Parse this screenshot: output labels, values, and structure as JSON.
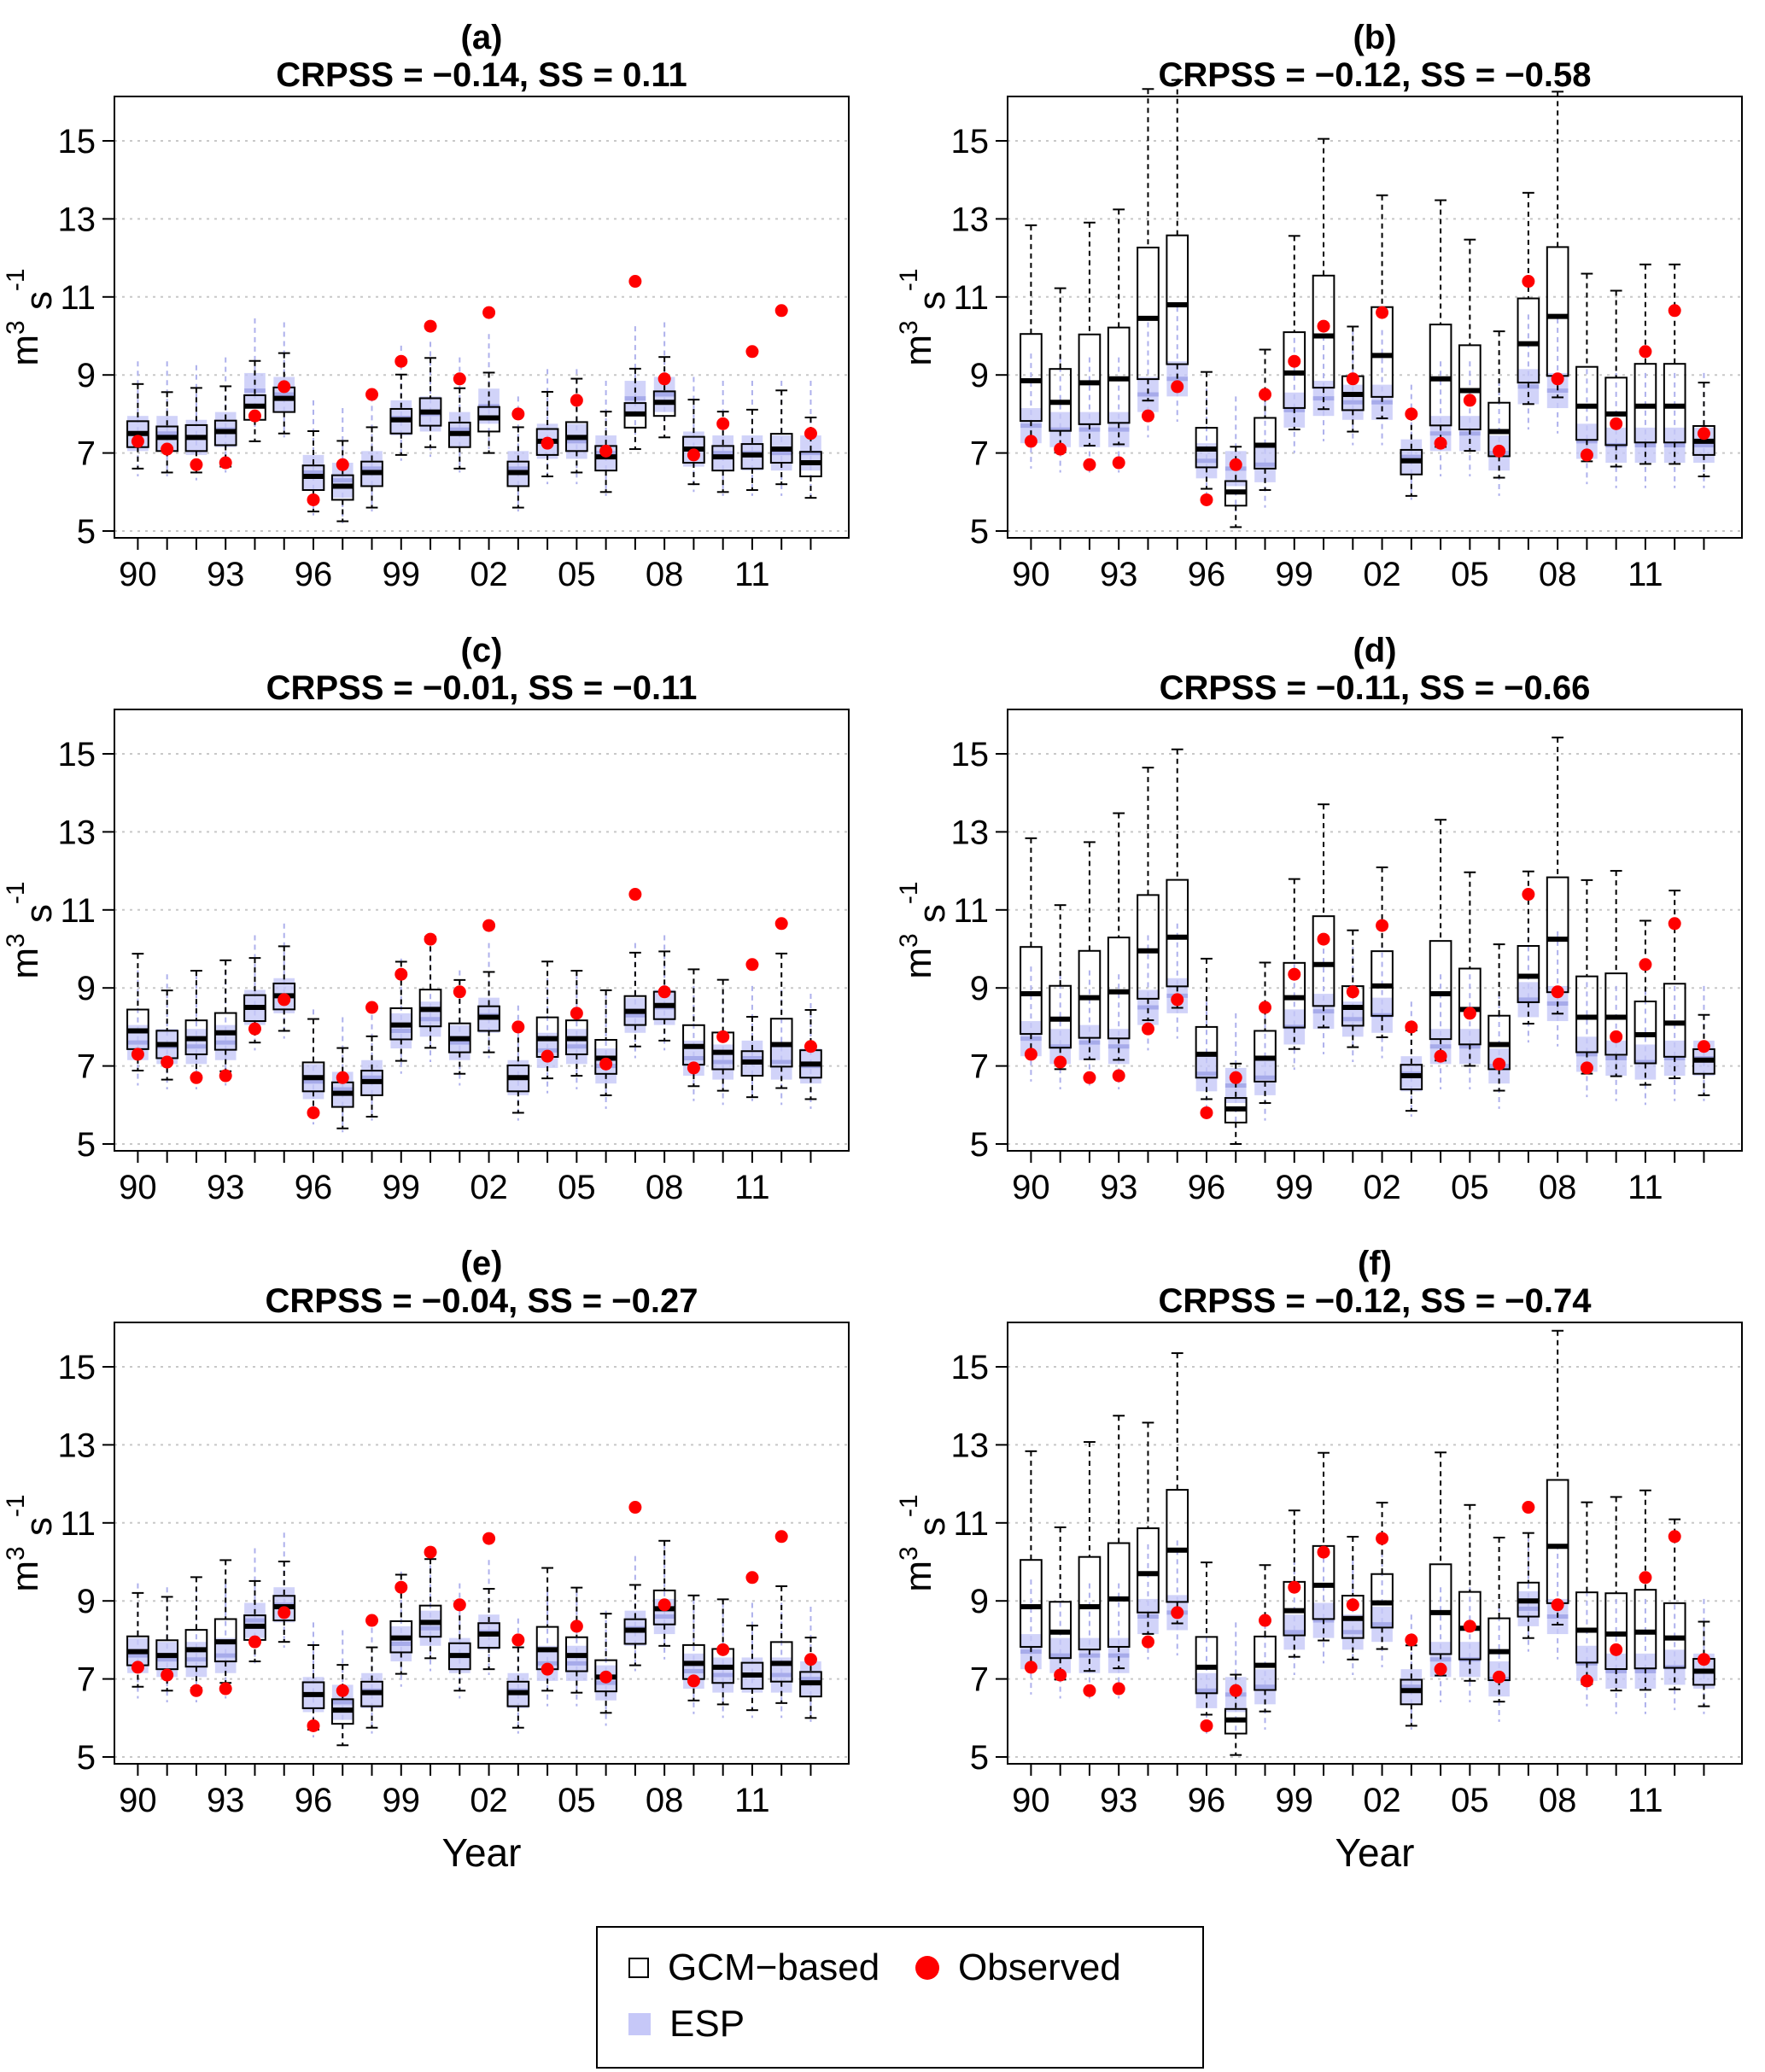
{
  "colors": {
    "gcm": "#000000",
    "esp": "#c6c8f8",
    "esp_whisker": "#aeb1ec",
    "observed": "#ff0000",
    "grid": "#c8c8c8"
  },
  "axes": {
    "ylabel_base": "m",
    "ylabel_sup": "3",
    "ylabel_unit": "s",
    "ylabel_unit_sup": "-1",
    "xlabel": "Year",
    "ylim": [
      5,
      15
    ],
    "yticks": [
      "5",
      "7",
      "9",
      "11",
      "13",
      "15"
    ],
    "xtick_labels": [
      "90",
      "93",
      "96",
      "99",
      "02",
      "05",
      "08",
      "11"
    ]
  },
  "legend": {
    "gcm": "GCM−based",
    "observed": "Observed",
    "esp": "ESP"
  },
  "observed": [
    7.3,
    7.1,
    6.7,
    6.75,
    7.95,
    8.7,
    5.8,
    6.7,
    8.5,
    9.35,
    10.25,
    8.9,
    10.6,
    8.0,
    7.25,
    8.35,
    7.05,
    11.4,
    8.9,
    6.95,
    7.75,
    9.6,
    10.65,
    7.5
  ],
  "chart_data": [
    {
      "type": "boxplot",
      "label": "(a)",
      "subtitle": "CRPSS = −0.14, SS = 0.11",
      "crpss": -0.14,
      "ss": 0.11,
      "years": [
        "90",
        "91",
        "92",
        "93",
        "94",
        "95",
        "96",
        "97",
        "98",
        "99",
        "00",
        "01",
        "02",
        "03",
        "04",
        "05",
        "06",
        "07",
        "08",
        "09",
        "10",
        "11",
        "12",
        "13"
      ],
      "gcm_median": [
        7.5,
        7.4,
        7.4,
        7.55,
        8.2,
        8.4,
        6.4,
        6.15,
        6.5,
        7.85,
        8.05,
        7.5,
        7.9,
        6.5,
        7.3,
        7.4,
        6.9,
        8.0,
        8.3,
        7.1,
        6.9,
        6.95,
        7.1,
        6.75
      ],
      "esp_median": [
        7.5,
        7.5,
        7.4,
        7.6,
        8.6,
        8.5,
        6.5,
        6.3,
        6.6,
        7.9,
        8.0,
        7.6,
        8.2,
        6.6,
        7.3,
        7.3,
        7.0,
        8.4,
        8.5,
        7.1,
        7.0,
        7.0,
        7.0,
        7.0
      ]
    },
    {
      "type": "boxplot",
      "label": "(b)",
      "subtitle": "CRPSS = −0.12, SS = −0.58",
      "crpss": -0.12,
      "ss": -0.58,
      "years": [
        "90",
        "91",
        "92",
        "93",
        "94",
        "95",
        "96",
        "97",
        "98",
        "99",
        "00",
        "01",
        "02",
        "03",
        "04",
        "05",
        "06",
        "07",
        "08",
        "09",
        "10",
        "11",
        "12",
        "13"
      ],
      "gcm_median": [
        8.85,
        8.3,
        8.8,
        8.9,
        10.45,
        10.8,
        7.1,
        6.0,
        7.2,
        9.05,
        10.0,
        8.5,
        9.5,
        6.8,
        8.9,
        8.6,
        7.55,
        9.8,
        10.5,
        8.2,
        8.0,
        8.2,
        8.2,
        7.3
      ],
      "esp_median": [
        7.7,
        7.6,
        7.6,
        7.6,
        8.5,
        8.9,
        6.8,
        6.6,
        6.7,
        8.1,
        8.4,
        8.3,
        8.3,
        6.9,
        7.5,
        7.5,
        7.0,
        8.7,
        8.6,
        7.3,
        7.2,
        7.2,
        7.2,
        7.2
      ]
    },
    {
      "type": "boxplot",
      "label": "(c)",
      "subtitle": "CRPSS = −0.01, SS = −0.11",
      "crpss": -0.01,
      "ss": -0.11,
      "years": [
        "90",
        "91",
        "92",
        "93",
        "94",
        "95",
        "96",
        "97",
        "98",
        "99",
        "00",
        "01",
        "02",
        "03",
        "04",
        "05",
        "06",
        "07",
        "08",
        "09",
        "10",
        "11",
        "12",
        "13"
      ],
      "gcm_median": [
        7.9,
        7.55,
        7.7,
        7.85,
        8.5,
        8.8,
        6.7,
        6.3,
        6.6,
        8.05,
        8.45,
        7.7,
        8.25,
        6.7,
        7.7,
        7.7,
        7.2,
        8.4,
        8.55,
        7.5,
        7.35,
        7.1,
        7.55,
        7.05
      ],
      "esp_median": [
        7.6,
        7.5,
        7.5,
        7.6,
        8.5,
        8.8,
        6.6,
        6.4,
        6.7,
        7.9,
        8.2,
        7.6,
        8.3,
        6.7,
        7.4,
        7.5,
        7.0,
        8.3,
        8.5,
        7.2,
        7.1,
        7.2,
        7.1,
        7.0
      ]
    },
    {
      "type": "boxplot",
      "label": "(d)",
      "subtitle": "CRPSS = −0.11, SS = −0.66",
      "crpss": -0.11,
      "ss": -0.66,
      "years": [
        "90",
        "91",
        "92",
        "93",
        "94",
        "95",
        "96",
        "97",
        "98",
        "99",
        "00",
        "01",
        "02",
        "03",
        "04",
        "05",
        "06",
        "07",
        "08",
        "09",
        "10",
        "11",
        "12",
        "13"
      ],
      "gcm_median": [
        8.85,
        8.2,
        8.75,
        8.9,
        9.95,
        10.3,
        7.3,
        5.9,
        7.2,
        8.75,
        9.6,
        8.5,
        9.05,
        6.75,
        8.85,
        8.45,
        7.55,
        9.3,
        10.25,
        8.25,
        8.25,
        7.8,
        8.1,
        7.15
      ],
      "esp_median": [
        7.7,
        7.5,
        7.6,
        7.5,
        8.5,
        8.8,
        6.8,
        6.5,
        6.7,
        8.0,
        8.4,
        8.2,
        8.3,
        6.8,
        7.5,
        7.5,
        7.0,
        8.7,
        8.6,
        7.3,
        7.2,
        7.1,
        7.2,
        7.2
      ]
    },
    {
      "type": "boxplot",
      "label": "(e)",
      "subtitle": "CRPSS = −0.04, SS = −0.27",
      "crpss": -0.04,
      "ss": -0.27,
      "years": [
        "90",
        "91",
        "92",
        "93",
        "94",
        "95",
        "96",
        "97",
        "98",
        "99",
        "00",
        "01",
        "02",
        "03",
        "04",
        "05",
        "06",
        "07",
        "08",
        "09",
        "10",
        "11",
        "12",
        "13"
      ],
      "gcm_median": [
        7.7,
        7.6,
        7.75,
        7.95,
        8.35,
        8.85,
        6.6,
        6.2,
        6.65,
        8.05,
        8.45,
        7.6,
        8.15,
        6.65,
        7.75,
        7.6,
        7.05,
        8.25,
        8.8,
        7.4,
        7.3,
        7.1,
        7.4,
        6.9
      ],
      "esp_median": [
        7.6,
        7.5,
        7.5,
        7.6,
        8.5,
        8.9,
        6.6,
        6.4,
        6.7,
        7.9,
        8.3,
        7.6,
        8.2,
        6.7,
        7.4,
        7.4,
        6.9,
        8.3,
        8.6,
        7.2,
        7.1,
        7.1,
        7.1,
        7.0
      ]
    },
    {
      "type": "boxplot",
      "label": "(f)",
      "subtitle": "CRPSS = −0.12, SS = −0.74",
      "crpss": -0.12,
      "ss": -0.74,
      "years": [
        "90",
        "91",
        "92",
        "93",
        "94",
        "95",
        "96",
        "97",
        "98",
        "99",
        "00",
        "01",
        "02",
        "03",
        "04",
        "05",
        "06",
        "07",
        "08",
        "09",
        "10",
        "11",
        "12",
        "13"
      ],
      "gcm_median": [
        8.85,
        8.2,
        8.85,
        9.05,
        9.7,
        10.3,
        7.3,
        5.95,
        7.35,
        8.75,
        9.4,
        8.55,
        8.95,
        6.7,
        8.7,
        8.3,
        7.7,
        9.0,
        10.4,
        8.25,
        8.15,
        8.2,
        8.05,
        7.2
      ],
      "esp_median": [
        7.7,
        7.6,
        7.6,
        7.6,
        8.6,
        8.7,
        6.7,
        6.6,
        6.8,
        8.2,
        8.5,
        8.2,
        8.4,
        6.8,
        7.5,
        7.5,
        7.0,
        8.8,
        8.6,
        7.4,
        7.2,
        7.2,
        7.3,
        7.2
      ]
    }
  ]
}
